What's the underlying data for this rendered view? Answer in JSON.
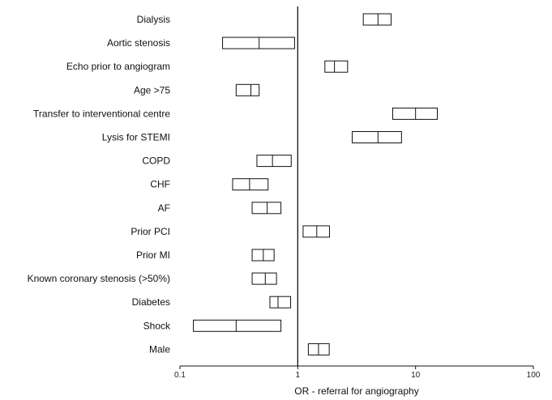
{
  "chart_data": {
    "type": "forest",
    "xlabel": "OR - referral for angiography",
    "xscale": "log",
    "xlim": [
      0.1,
      100
    ],
    "xticks": [
      "0.1",
      "1",
      "10",
      "100"
    ],
    "reference_line": 1,
    "grid": false,
    "categories": [
      "Dialysis",
      "Aortic stenosis",
      "Echo prior to angiogram",
      "Age >75",
      "Transfer to interventional centre",
      "Lysis for STEMI",
      "COPD",
      "CHF",
      "AF",
      "Prior PCI",
      "Prior MI",
      "Known coronary stenosis (>50%)",
      "Diabetes",
      "Shock",
      "Male"
    ],
    "estimates": [
      {
        "or": 4.8,
        "lower": 3.6,
        "upper": 6.2
      },
      {
        "or": 0.47,
        "lower": 0.23,
        "upper": 0.94
      },
      {
        "or": 2.05,
        "lower": 1.7,
        "upper": 2.65
      },
      {
        "or": 0.4,
        "lower": 0.3,
        "upper": 0.47
      },
      {
        "or": 10.0,
        "lower": 6.4,
        "upper": 15.3
      },
      {
        "or": 4.8,
        "lower": 2.9,
        "upper": 7.6
      },
      {
        "or": 0.61,
        "lower": 0.45,
        "upper": 0.88
      },
      {
        "or": 0.39,
        "lower": 0.28,
        "upper": 0.56
      },
      {
        "or": 0.55,
        "lower": 0.41,
        "upper": 0.72
      },
      {
        "or": 1.45,
        "lower": 1.11,
        "upper": 1.86
      },
      {
        "or": 0.51,
        "lower": 0.41,
        "upper": 0.63
      },
      {
        "or": 0.53,
        "lower": 0.41,
        "upper": 0.66
      },
      {
        "or": 0.68,
        "lower": 0.58,
        "upper": 0.87
      },
      {
        "or": 0.3,
        "lower": 0.13,
        "upper": 0.72
      },
      {
        "or": 1.5,
        "lower": 1.23,
        "upper": 1.85
      }
    ]
  }
}
